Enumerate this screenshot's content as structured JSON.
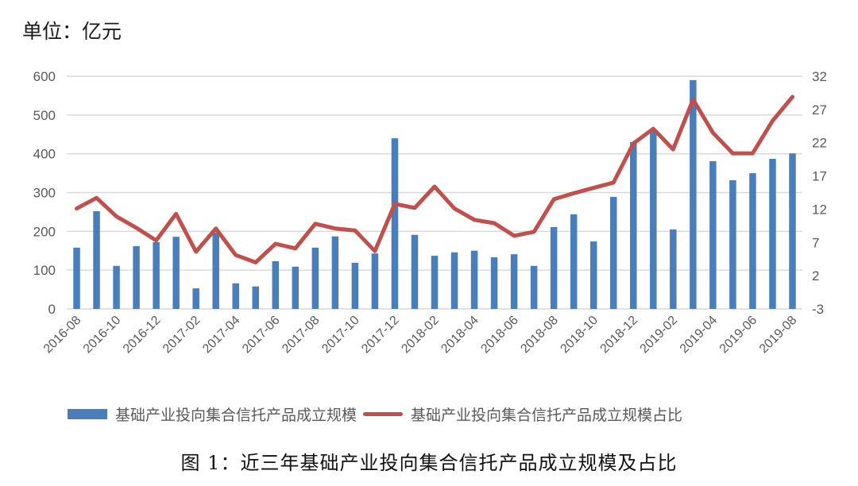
{
  "header": {
    "unit_label": "单位：亿元"
  },
  "caption": "图 1：近三年基础产业投向集合信托产品成立规模及占比",
  "colors": {
    "bar": "#4A7EBB",
    "line": "#C0504D",
    "grid": "#D9D9D9",
    "tick_text": "#595959"
  },
  "legend": {
    "bar_label": "基础产业投向集合信托产品成立规模",
    "line_label": "基础产业投向集合信托产品成立规模占比"
  },
  "chart_data": {
    "type": "bar+line",
    "title": "近三年基础产业投向集合信托产品成立规模及占比",
    "xlabel": "",
    "ylabel": "单位：亿元",
    "ylabel_right": "",
    "ylim": [
      0,
      600
    ],
    "yticks": [
      0,
      100,
      200,
      300,
      400,
      500,
      600
    ],
    "ylim_right": [
      -3,
      32
    ],
    "yticks_right": [
      -3,
      2,
      7,
      12,
      17,
      22,
      27,
      32
    ],
    "grid": true,
    "legend_position": "bottom",
    "x_tick_labels": [
      "2016-08",
      "2016-10",
      "2016-12",
      "2017-02",
      "2017-04",
      "2017-06",
      "2017-08",
      "2017-10",
      "2017-12",
      "2018-02",
      "2018-04",
      "2018-06",
      "2018-08",
      "2018-10",
      "2018-12",
      "2019-02",
      "2019-04",
      "2019-06",
      "2019-08"
    ],
    "categories": [
      "2016-08",
      "2016-09",
      "2016-10",
      "2016-11",
      "2016-12",
      "2017-01",
      "2017-02",
      "2017-03",
      "2017-04",
      "2017-05",
      "2017-06",
      "2017-07",
      "2017-08",
      "2017-09",
      "2017-10",
      "2017-11",
      "2017-12",
      "2018-01",
      "2018-02",
      "2018-03",
      "2018-04",
      "2018-05",
      "2018-06",
      "2018-07",
      "2018-08",
      "2018-09",
      "2018-10",
      "2018-11",
      "2018-12",
      "2019-01",
      "2019-02",
      "2019-03",
      "2019-04",
      "2019-05",
      "2019-06",
      "2019-07",
      "2019-08"
    ],
    "series": [
      {
        "name": "基础产业投向集合信托产品成立规模",
        "type": "bar",
        "axis": "left",
        "values": [
          158,
          252,
          111,
          162,
          172,
          186,
          53,
          197,
          66,
          58,
          123,
          109,
          158,
          187,
          119,
          143,
          440,
          191,
          137,
          146,
          150,
          133,
          141,
          111,
          211,
          244,
          174,
          289,
          430,
          461,
          205,
          590,
          381,
          332,
          350,
          387,
          401
        ]
      },
      {
        "name": "基础产业投向集合信托产品成立规模占比",
        "type": "line",
        "axis": "right",
        "values": [
          12.1,
          13.7,
          10.9,
          9.2,
          7.3,
          11.3,
          5.6,
          9.1,
          5.1,
          4.0,
          6.8,
          6.1,
          9.8,
          9.1,
          8.8,
          5.7,
          12.8,
          12.2,
          15.4,
          12.1,
          10.4,
          9.9,
          8.0,
          8.6,
          13.5,
          14.4,
          15.2,
          16.0,
          21.9,
          24.1,
          21.0,
          28.5,
          23.5,
          20.4,
          20.4,
          25.3,
          28.9
        ]
      }
    ]
  }
}
